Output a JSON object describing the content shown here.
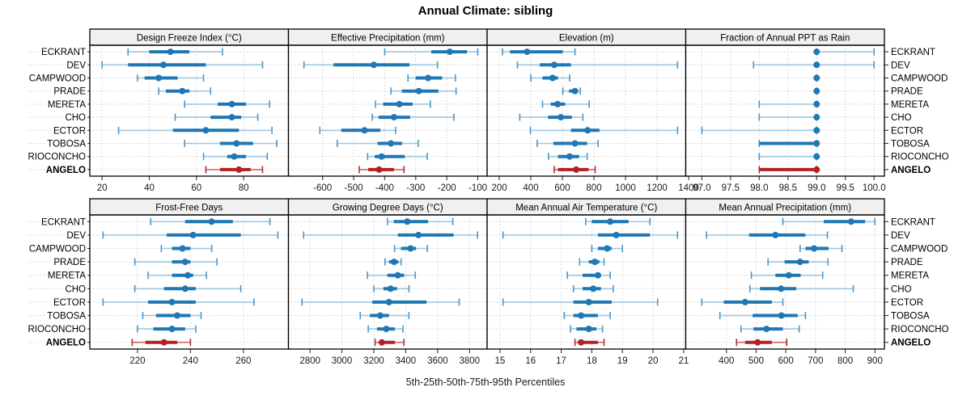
{
  "title": "Annual Climate: sibling",
  "caption": "5th-25th-50th-75th-95th Percentiles",
  "stations": [
    "ECKRANT",
    "DEV",
    "CAMPWOOD",
    "PRADE",
    "MERETA",
    "CHO",
    "ECTOR",
    "TOBOSA",
    "RIOCONCHO",
    "ANGELO"
  ],
  "highlight_station": "ANGELO",
  "percentile_labels": [
    "5th",
    "25th",
    "50th",
    "75th",
    "95th"
  ],
  "colors": {
    "series_blue": "#1f77b4",
    "series_blue_light": "#9ec7e2",
    "series_blue_cap": "#4d95c7",
    "series_red": "#b22222",
    "series_red_light": "#cc6666",
    "series_red_cap": "#b23030",
    "grid": "#c6c6c6",
    "strip_bg": "#f0f0f0",
    "panel_border": "#000000",
    "tick": "#333333",
    "text": "#000000"
  },
  "chart_data": [
    {
      "type": "dotplot",
      "title": "Design Freeze Index (°C)",
      "xlim": [
        14.8,
        99
      ],
      "ticks": [
        20,
        40,
        60,
        80
      ],
      "tick_labels": [
        "20",
        "40",
        "60",
        "80"
      ],
      "values": [
        [
          31,
          40,
          49,
          57,
          71
        ],
        [
          20,
          31,
          46,
          64,
          88
        ],
        [
          35,
          38,
          44,
          52,
          63
        ],
        [
          44,
          47,
          54,
          57,
          66
        ],
        [
          55,
          69,
          75,
          81,
          91
        ],
        [
          51,
          66,
          75,
          79,
          86
        ],
        [
          27,
          50,
          64,
          78,
          92
        ],
        [
          55,
          70,
          77,
          84,
          94
        ],
        [
          63,
          73,
          76,
          81,
          90
        ],
        [
          64,
          70,
          78,
          83,
          88
        ]
      ]
    },
    {
      "type": "dotplot",
      "title": "Effective Precipitation (mm)",
      "xlim": [
        -710,
        -70
      ],
      "ticks": [
        -600,
        -500,
        -400,
        -300,
        -200,
        -100
      ],
      "tick_labels": [
        "-600",
        "-500",
        "-400",
        "-300",
        "-200",
        "-100"
      ],
      "values": [
        [
          -400,
          -250,
          -190,
          -135,
          -100
        ],
        [
          -660,
          -565,
          -435,
          -320,
          -230
        ],
        [
          -325,
          -300,
          -260,
          -215,
          -172
        ],
        [
          -380,
          -345,
          -290,
          -227,
          -170
        ],
        [
          -430,
          -405,
          -353,
          -310,
          -253
        ],
        [
          -440,
          -420,
          -370,
          -318,
          -177
        ],
        [
          -609,
          -540,
          -465,
          -414,
          -365
        ],
        [
          -553,
          -423,
          -380,
          -344,
          -292
        ],
        [
          -455,
          -432,
          -410,
          -335,
          -263
        ],
        [
          -482,
          -453,
          -418,
          -370,
          -338
        ]
      ]
    },
    {
      "type": "dotplot",
      "title": "Elevation (m)",
      "xlim": [
        123,
        1382
      ],
      "ticks": [
        200,
        400,
        600,
        800,
        1000,
        1200,
        1400
      ],
      "tick_labels": [
        "200",
        "400",
        "600",
        "800",
        "1000",
        "1200",
        "1400"
      ],
      "values": [
        [
          220,
          268,
          376,
          602,
          680
        ],
        [
          315,
          457,
          548,
          654,
          1330
        ],
        [
          400,
          474,
          538,
          572,
          646
        ],
        [
          603,
          642,
          680,
          700,
          714
        ],
        [
          474,
          526,
          570,
          617,
          770
        ],
        [
          330,
          509,
          590,
          660,
          730
        ],
        [
          397,
          654,
          760,
          835,
          1330
        ],
        [
          440,
          543,
          680,
          757,
          826
        ],
        [
          512,
          572,
          646,
          706,
          757
        ],
        [
          548,
          572,
          688,
          766,
          808
        ]
      ]
    },
    {
      "type": "dotplot",
      "title": "Fraction of Annual PPT as Rain",
      "xlim": [
        96.72,
        100.18
      ],
      "ticks": [
        97.0,
        97.5,
        98.0,
        98.5,
        99.0,
        99.5,
        100.0
      ],
      "tick_labels": [
        "97.0",
        "97.5",
        "98.0",
        "98.5",
        "99.0",
        "99.5",
        "100.0"
      ],
      "values": [
        [
          99,
          99,
          99,
          99,
          100
        ],
        [
          97.9,
          99,
          99,
          99,
          100
        ],
        [
          99,
          99,
          99,
          99,
          99
        ],
        [
          99,
          99,
          99,
          99,
          99
        ],
        [
          98,
          99,
          99,
          99,
          99
        ],
        [
          98,
          99,
          99,
          99,
          99
        ],
        [
          97,
          99,
          99,
          99,
          99
        ],
        [
          98,
          98,
          99,
          99,
          99
        ],
        [
          98,
          99,
          99,
          99,
          99
        ],
        [
          98,
          98,
          99,
          99,
          99
        ]
      ]
    },
    {
      "type": "dotplot",
      "title": "Frost-Free Days",
      "xlim": [
        202,
        277
      ],
      "ticks": [
        220,
        240,
        260
      ],
      "tick_labels": [
        "220",
        "240",
        "260"
      ],
      "values": [
        [
          225,
          238,
          248,
          256,
          270
        ],
        [
          207,
          231,
          241,
          259,
          273
        ],
        [
          229,
          233,
          237,
          240,
          248
        ],
        [
          219,
          233,
          238,
          240,
          250
        ],
        [
          224,
          233,
          239,
          241,
          246
        ],
        [
          219,
          230,
          238,
          242,
          259
        ],
        [
          207,
          224,
          233,
          242,
          264
        ],
        [
          222,
          227,
          235,
          240,
          244
        ],
        [
          220,
          226,
          233,
          238,
          242
        ],
        [
          218,
          223,
          230,
          235,
          240
        ]
      ]
    },
    {
      "type": "dotplot",
      "title": "Growing Degree Days (°C)",
      "xlim": [
        2665,
        3910
      ],
      "ticks": [
        2800,
        3000,
        3200,
        3400,
        3600,
        3800
      ],
      "tick_labels": [
        "2800",
        "3000",
        "3200",
        "3400",
        "3600",
        "3800"
      ],
      "values": [
        [
          3285,
          3325,
          3410,
          3540,
          3695
        ],
        [
          2760,
          3350,
          3480,
          3700,
          3850
        ],
        [
          3330,
          3370,
          3430,
          3465,
          3535
        ],
        [
          3270,
          3295,
          3327,
          3354,
          3371
        ],
        [
          3160,
          3285,
          3350,
          3390,
          3460
        ],
        [
          3200,
          3260,
          3305,
          3345,
          3420
        ],
        [
          2750,
          3190,
          3295,
          3530,
          3735
        ],
        [
          3115,
          3175,
          3240,
          3295,
          3420
        ],
        [
          3165,
          3220,
          3278,
          3332,
          3383
        ],
        [
          3208,
          3235,
          3250,
          3332,
          3388
        ]
      ]
    },
    {
      "type": "dotplot",
      "title": "Mean Annual Air Temperature (°C)",
      "xlim": [
        14.58,
        21.07
      ],
      "ticks": [
        15,
        16,
        17,
        18,
        19,
        20,
        21
      ],
      "tick_labels": [
        "15",
        "16",
        "17",
        "18",
        "19",
        "20",
        "21"
      ],
      "values": [
        [
          17.8,
          18.0,
          18.6,
          19.2,
          19.9
        ],
        [
          15.1,
          18.2,
          18.8,
          19.9,
          20.8
        ],
        [
          18.0,
          18.2,
          18.5,
          18.65,
          19.0
        ],
        [
          17.6,
          17.9,
          18.1,
          18.25,
          18.4
        ],
        [
          17.2,
          17.7,
          18.2,
          18.3,
          18.6
        ],
        [
          17.4,
          17.7,
          18.05,
          18.3,
          18.7
        ],
        [
          15.1,
          17.4,
          17.9,
          18.65,
          20.15
        ],
        [
          17.1,
          17.4,
          17.65,
          18.2,
          18.6
        ],
        [
          17.3,
          17.5,
          17.9,
          18.15,
          18.35
        ],
        [
          17.45,
          17.55,
          17.65,
          18.2,
          18.4
        ]
      ]
    },
    {
      "type": "dotplot",
      "title": "Mean Annual Precipitation (mm)",
      "xlim": [
        263,
        932
      ],
      "ticks": [
        400,
        500,
        600,
        700,
        800,
        900
      ],
      "tick_labels": [
        "400",
        "500",
        "600",
        "700",
        "800",
        "900"
      ],
      "values": [
        [
          590,
          728,
          820,
          867,
          900
        ],
        [
          333,
          476,
          565,
          666,
          740
        ],
        [
          648,
          666,
          695,
          744,
          789
        ],
        [
          540,
          596,
          648,
          677,
          742
        ],
        [
          484,
          565,
          610,
          650,
          724
        ],
        [
          479,
          513,
          584,
          635,
          827
        ],
        [
          317,
          391,
          463,
          553,
          590
        ],
        [
          378,
          488,
          585,
          640,
          666
        ],
        [
          449,
          491,
          535,
          590,
          645
        ],
        [
          434,
          463,
          505,
          553,
          603
        ]
      ]
    }
  ]
}
